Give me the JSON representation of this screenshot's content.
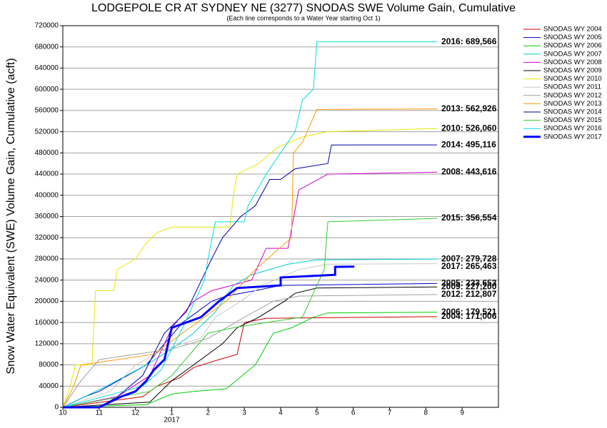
{
  "chart_data": {
    "type": "line",
    "title": "LODGEPOLE CR AT SYDNEY NE (3277) SNODAS SWE Volume Gain, Cumulative",
    "subtitle": "(Each line corresponds to a Water Year starting Oct 1)",
    "y_label": "Snow Water Equivalent (SWE) Volume Gain, Cumulative (acft)",
    "x_year_label": "2017",
    "xlim": [
      0,
      12
    ],
    "xticks": [
      {
        "value": 0,
        "label": "10"
      },
      {
        "value": 1,
        "label": "11"
      },
      {
        "value": 2,
        "label": "12"
      },
      {
        "value": 3,
        "label": "1"
      },
      {
        "value": 4,
        "label": "2"
      },
      {
        "value": 5,
        "label": "3"
      },
      {
        "value": 6,
        "label": "4"
      },
      {
        "value": 7,
        "label": "5"
      },
      {
        "value": 8,
        "label": "6"
      },
      {
        "value": 9,
        "label": "7"
      },
      {
        "value": 10,
        "label": "8"
      },
      {
        "value": 11,
        "label": "9"
      }
    ],
    "ylim": [
      0,
      720000
    ],
    "yticks": [
      0,
      40000,
      80000,
      120000,
      160000,
      200000,
      240000,
      280000,
      320000,
      360000,
      400000,
      440000,
      480000,
      520000,
      560000,
      600000,
      640000,
      680000,
      720000
    ],
    "grid": true,
    "legend": "right",
    "series": [
      {
        "name": "SNODAS WY 2004",
        "color": "#cc0000",
        "label": "2004: 171,006",
        "x": [
          0,
          2.2,
          2.6,
          3.2,
          3.6,
          4.3,
          4.8,
          5.0,
          5.6,
          10.31
        ],
        "values": [
          0,
          20000,
          40000,
          55000,
          75000,
          90000,
          100000,
          160000,
          168000,
          171006
        ]
      },
      {
        "name": "SNODAS WY 2005",
        "color": "#0000cc",
        "label": "2005: 233,653",
        "x": [
          0,
          0.6,
          1.0,
          2.3,
          2.8,
          3.3,
          3.7,
          4.1,
          4.5,
          5.3,
          6.0,
          10.31
        ],
        "values": [
          0,
          20000,
          30000,
          80000,
          120000,
          160000,
          180000,
          200000,
          210000,
          220000,
          230000,
          233653
        ]
      },
      {
        "name": "SNODAS WY 2006",
        "color": "#00cc00",
        "label": "2006: 179,521",
        "x": [
          0,
          2.3,
          3.0,
          3.6,
          4.5,
          5.3,
          5.8,
          6.3,
          6.9,
          7.3,
          10.31
        ],
        "values": [
          0,
          5000,
          25000,
          30000,
          35000,
          80000,
          140000,
          150000,
          170000,
          178000,
          179521
        ]
      },
      {
        "name": "SNODAS WY 2007",
        "color": "#00cccc",
        "label": "2007: 279,728",
        "x": [
          0,
          1.2,
          2.3,
          3.0,
          3.6,
          4.2,
          4.7,
          5.2,
          6.2,
          7.0,
          10.31
        ],
        "values": [
          0,
          40000,
          80000,
          110000,
          140000,
          180000,
          230000,
          250000,
          270000,
          278000,
          279728
        ]
      },
      {
        "name": "SNODAS WY 2008",
        "color": "#cc00cc",
        "label": "2008: 443,616",
        "x": [
          0,
          1.5,
          2.4,
          3.0,
          3.6,
          4.1,
          5.2,
          5.6,
          6.2,
          6.5,
          7.3,
          10.31
        ],
        "values": [
          0,
          20000,
          60000,
          150000,
          200000,
          220000,
          240000,
          300000,
          300000,
          410000,
          440000,
          443616
        ]
      },
      {
        "name": "SNODAS WY 2009",
        "color": "#000000",
        "label": "2009: 227,200",
        "x": [
          0,
          2.4,
          3.0,
          3.6,
          4.4,
          4.8,
          5.4,
          6.1,
          6.4,
          7.0,
          10.31
        ],
        "values": [
          0,
          10000,
          50000,
          80000,
          120000,
          150000,
          170000,
          200000,
          215000,
          225000,
          227200
        ]
      },
      {
        "name": "SNODAS WY 2010",
        "color": "#e8e800",
        "label": "2010: 526,060",
        "x": [
          0,
          0.2,
          0.35,
          0.8,
          0.9,
          1.4,
          1.5,
          2.0,
          2.3,
          2.6,
          3.0,
          4.6,
          4.7,
          4.8,
          5.4,
          5.9,
          6.6,
          7.3,
          10.31
        ],
        "values": [
          0,
          40000,
          80000,
          80000,
          220000,
          220000,
          260000,
          280000,
          310000,
          330000,
          340000,
          340000,
          400000,
          440000,
          460000,
          490000,
          510000,
          520000,
          526060
        ]
      },
      {
        "name": "SNODAS WY 2011",
        "color": "#c8c8c8",
        "x": [
          0,
          1.3,
          2.0,
          2.8,
          3.8,
          4.2,
          4.9,
          5.5,
          6.5,
          7.3,
          10.31
        ],
        "values": [
          0,
          30000,
          80000,
          110000,
          130000,
          170000,
          200000,
          230000,
          260000,
          270000,
          271000
        ]
      },
      {
        "name": "SNODAS WY 2012",
        "color": "#a0a0a0",
        "label": "2012: 212,807",
        "x": [
          0,
          0.5,
          1.0,
          2.0,
          3.0,
          4.0,
          5.0,
          5.8,
          6.5,
          10.31
        ],
        "values": [
          0,
          50000,
          90000,
          100000,
          110000,
          130000,
          170000,
          200000,
          210000,
          212807
        ]
      },
      {
        "name": "SNODAS WY 2013",
        "color": "#ff9900",
        "label": "2013: 562,926",
        "x": [
          0,
          0.3,
          0.5,
          1.5,
          2.5,
          3.3,
          4.5,
          5.3,
          6.3,
          6.35,
          6.6,
          7.0,
          10.31
        ],
        "values": [
          0,
          40000,
          80000,
          90000,
          100000,
          140000,
          200000,
          260000,
          320000,
          480000,
          500000,
          562000,
          562926
        ]
      },
      {
        "name": "SNODAS WY 2014",
        "color": "#0000aa",
        "label": "2014: 495,116",
        "x": [
          0,
          1.0,
          1.5,
          2.2,
          2.8,
          3.4,
          4.1,
          4.4,
          4.9,
          5.3,
          5.7,
          6.0,
          6.4,
          7.3,
          7.4,
          10.31
        ],
        "values": [
          0,
          0,
          20000,
          60000,
          140000,
          180000,
          280000,
          320000,
          360000,
          380000,
          430000,
          430000,
          450000,
          460000,
          495000,
          495116
        ]
      },
      {
        "name": "SNODAS WY 2015",
        "color": "#33cc33",
        "label": "2015: 356,554",
        "x": [
          0,
          2.4,
          3.0,
          3.5,
          4.0,
          4.7,
          5.6,
          6.6,
          7.2,
          7.3,
          10.31
        ],
        "values": [
          0,
          30000,
          60000,
          100000,
          140000,
          150000,
          160000,
          170000,
          260000,
          350000,
          356554
        ]
      },
      {
        "name": "SNODAS WY 2016",
        "color": "#00e0e0",
        "label": "2016: 689,566",
        "x": [
          0,
          2.2,
          2.7,
          3.3,
          3.9,
          4.0,
          4.2,
          5.0,
          5.1,
          5.6,
          6.0,
          6.4,
          6.6,
          6.9,
          7.0,
          10.31
        ],
        "values": [
          0,
          40000,
          70000,
          150000,
          240000,
          280000,
          350000,
          350000,
          380000,
          440000,
          480000,
          520000,
          580000,
          600000,
          689566,
          689566
        ]
      },
      {
        "name": "SNODAS WY 2017",
        "color": "#0000ff",
        "width": 3,
        "label": "2017: 265,463",
        "x": [
          0,
          1.0,
          1.6,
          2.0,
          2.3,
          2.5,
          2.8,
          3.0,
          3.4,
          3.8,
          4.3,
          4.8,
          6.0,
          6.0,
          7.5,
          7.5,
          8.03
        ],
        "values": [
          0,
          0,
          20000,
          30000,
          50000,
          70000,
          90000,
          150000,
          160000,
          170000,
          200000,
          225000,
          230000,
          245000,
          250000,
          265000,
          265463
        ]
      }
    ]
  }
}
